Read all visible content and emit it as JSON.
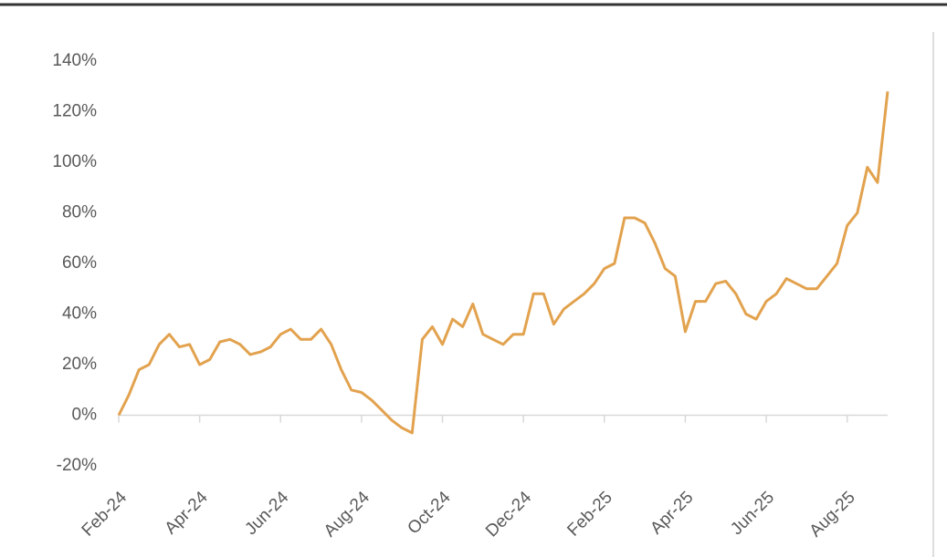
{
  "chart_data": {
    "type": "line",
    "categories": [
      "Feb-24",
      null,
      null,
      null,
      null,
      null,
      null,
      null,
      "Apr-24",
      null,
      null,
      null,
      null,
      null,
      null,
      null,
      "Jun-24",
      null,
      null,
      null,
      null,
      null,
      null,
      null,
      "Aug-24",
      null,
      null,
      null,
      null,
      null,
      null,
      null,
      "Oct-24",
      null,
      null,
      null,
      null,
      null,
      null,
      null,
      "Dec-24",
      null,
      null,
      null,
      null,
      null,
      null,
      null,
      "Feb-25",
      null,
      null,
      null,
      null,
      null,
      null,
      null,
      "Apr-25",
      null,
      null,
      null,
      null,
      null,
      null,
      null,
      "Jun-25",
      null,
      null,
      null,
      null,
      null,
      null,
      null,
      "Aug-25",
      null,
      null,
      null,
      null
    ],
    "series": [
      {
        "color": "#e2a24e",
        "values": [
          0,
          8,
          18,
          20,
          28,
          32,
          27,
          28,
          20,
          22,
          29,
          30,
          28,
          24,
          25,
          27,
          32,
          34,
          30,
          30,
          34,
          28,
          18,
          10,
          9,
          6,
          2,
          -2,
          -5,
          -7,
          30,
          35,
          28,
          38,
          35,
          44,
          32,
          30,
          28,
          32,
          32,
          48,
          48,
          36,
          42,
          45,
          48,
          52,
          58,
          60,
          78,
          78,
          76,
          68,
          58,
          55,
          33,
          45,
          45,
          52,
          53,
          48,
          40,
          38,
          45,
          48,
          54,
          52,
          50,
          50,
          55,
          60,
          75,
          80,
          98,
          92,
          128
        ]
      }
    ],
    "ylim": [
      -20,
      140
    ],
    "yticks": [
      {
        "value": -20,
        "label": "-20%"
      },
      {
        "value": 0,
        "label": "0%"
      },
      {
        "value": 20,
        "label": "20%"
      },
      {
        "value": 40,
        "label": "40%"
      },
      {
        "value": 60,
        "label": "60%"
      },
      {
        "value": 80,
        "label": "80%"
      },
      {
        "value": 100,
        "label": "100%"
      },
      {
        "value": 120,
        "label": "120%"
      },
      {
        "value": 140,
        "label": "140%"
      }
    ]
  }
}
